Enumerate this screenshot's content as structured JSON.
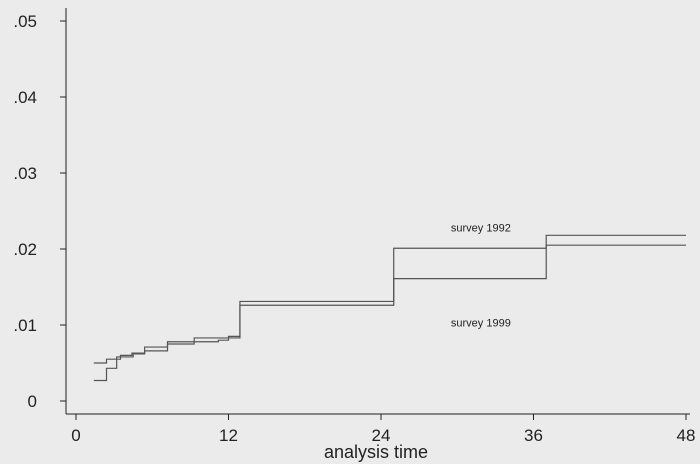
{
  "chart_data": {
    "type": "line",
    "line_style": "step",
    "xlabel": "analysis time",
    "ylabel": "",
    "xlim": [
      0,
      48
    ],
    "ylim": [
      0,
      0.05
    ],
    "x_ticks": [
      0,
      12,
      24,
      36,
      48
    ],
    "x_tick_labels": [
      "0",
      "12",
      "24",
      "36",
      "48"
    ],
    "y_ticks": [
      0,
      0.01,
      0.02,
      0.03,
      0.04,
      0.05
    ],
    "y_tick_labels": [
      "0",
      ".01",
      ".02",
      ".03",
      ".04",
      ".05"
    ],
    "grid": false,
    "series": [
      {
        "name": "survey 1992",
        "color": "#555555",
        "points": [
          [
            1.4,
            0.005
          ],
          [
            2.4,
            0.0055
          ],
          [
            3.5,
            0.006
          ],
          [
            4.4,
            0.0063
          ],
          [
            5.4,
            0.0071
          ],
          [
            7.2,
            0.0078
          ],
          [
            9.3,
            0.0083
          ],
          [
            12.0,
            0.0085
          ],
          [
            12.9,
            0.0131
          ],
          [
            25.0,
            0.0201
          ],
          [
            37.0,
            0.0218
          ],
          [
            48.0,
            0.0218
          ]
        ]
      },
      {
        "name": "survey 1999",
        "color": "#555555",
        "points": [
          [
            1.4,
            0.0027
          ],
          [
            2.4,
            0.0043
          ],
          [
            3.2,
            0.0058
          ],
          [
            4.5,
            0.0062
          ],
          [
            5.4,
            0.0066
          ],
          [
            7.2,
            0.0075
          ],
          [
            9.3,
            0.0078
          ],
          [
            11.2,
            0.008
          ],
          [
            12.0,
            0.0083
          ],
          [
            12.9,
            0.0126
          ],
          [
            25.0,
            0.0161
          ],
          [
            37.0,
            0.0205
          ],
          [
            48.0,
            0.0205
          ]
        ]
      }
    ],
    "annotations": [
      {
        "text": "survey 1992",
        "x": 29.5,
        "y": 0.0223
      },
      {
        "text": "survey 1999",
        "x": 29.5,
        "y": 0.0098
      }
    ]
  }
}
